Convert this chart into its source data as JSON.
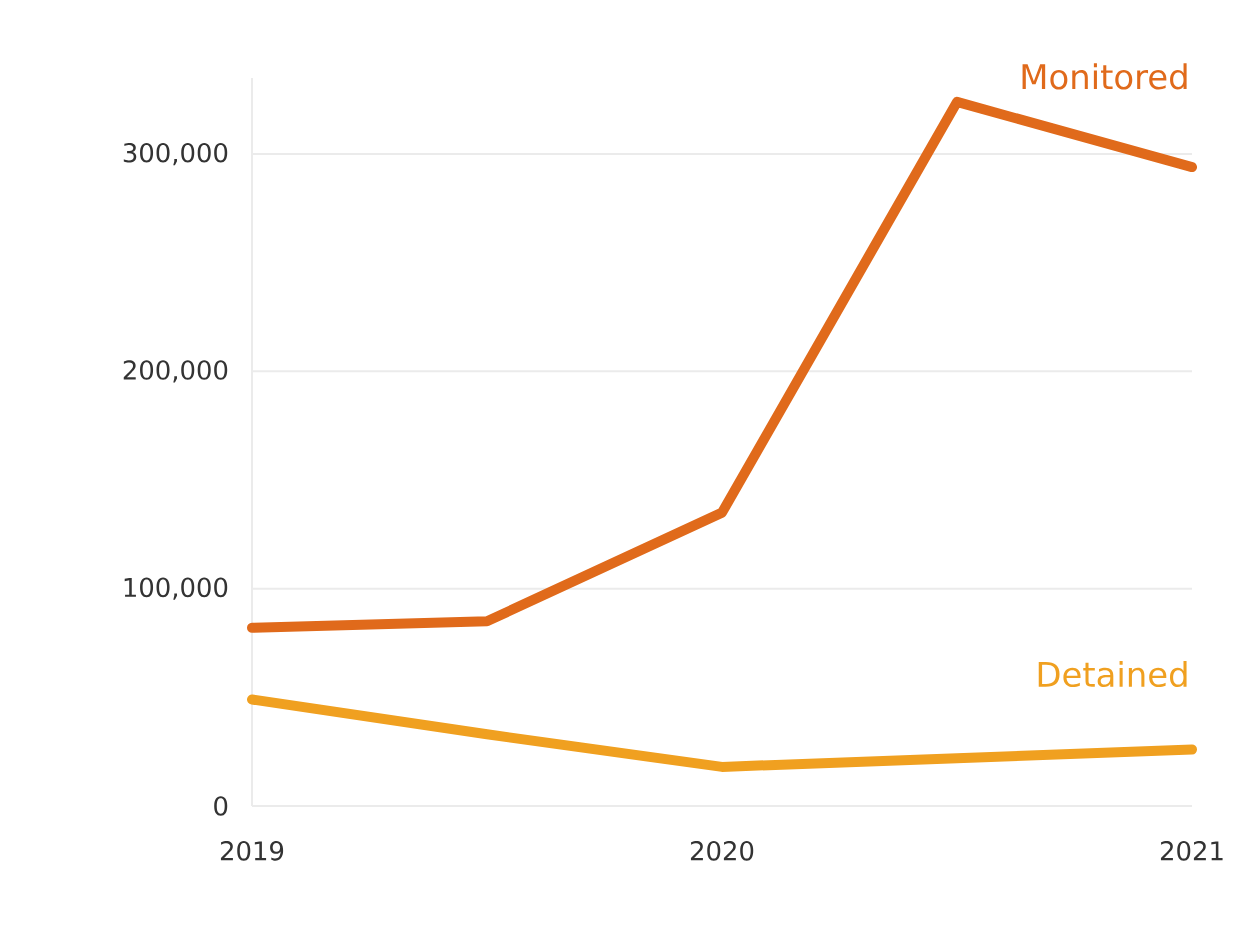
{
  "chart_data": {
    "type": "line",
    "x": [
      2019,
      2019.5,
      2020,
      2020.5,
      2021
    ],
    "series": [
      {
        "name": "Monitored",
        "color": "#e06a1b",
        "values": [
          82000,
          85000,
          135000,
          324000,
          294000
        ]
      },
      {
        "name": "Detained",
        "color": "#f0a020",
        "values": [
          49000,
          33000,
          18000,
          22000,
          26000
        ]
      }
    ],
    "xlim": [
      2019,
      2021
    ],
    "xticks": [
      2019,
      2020,
      2021
    ],
    "ylim": [
      0,
      335000
    ],
    "yticks": [
      {
        "value": 0,
        "label": "0"
      },
      {
        "value": 100000,
        "label": "100,000"
      },
      {
        "value": 200000,
        "label": "200,000"
      },
      {
        "value": 300000,
        "label": "300,000"
      }
    ],
    "grid": "y",
    "marker": "none",
    "line_style": "solid",
    "legend": false
  }
}
